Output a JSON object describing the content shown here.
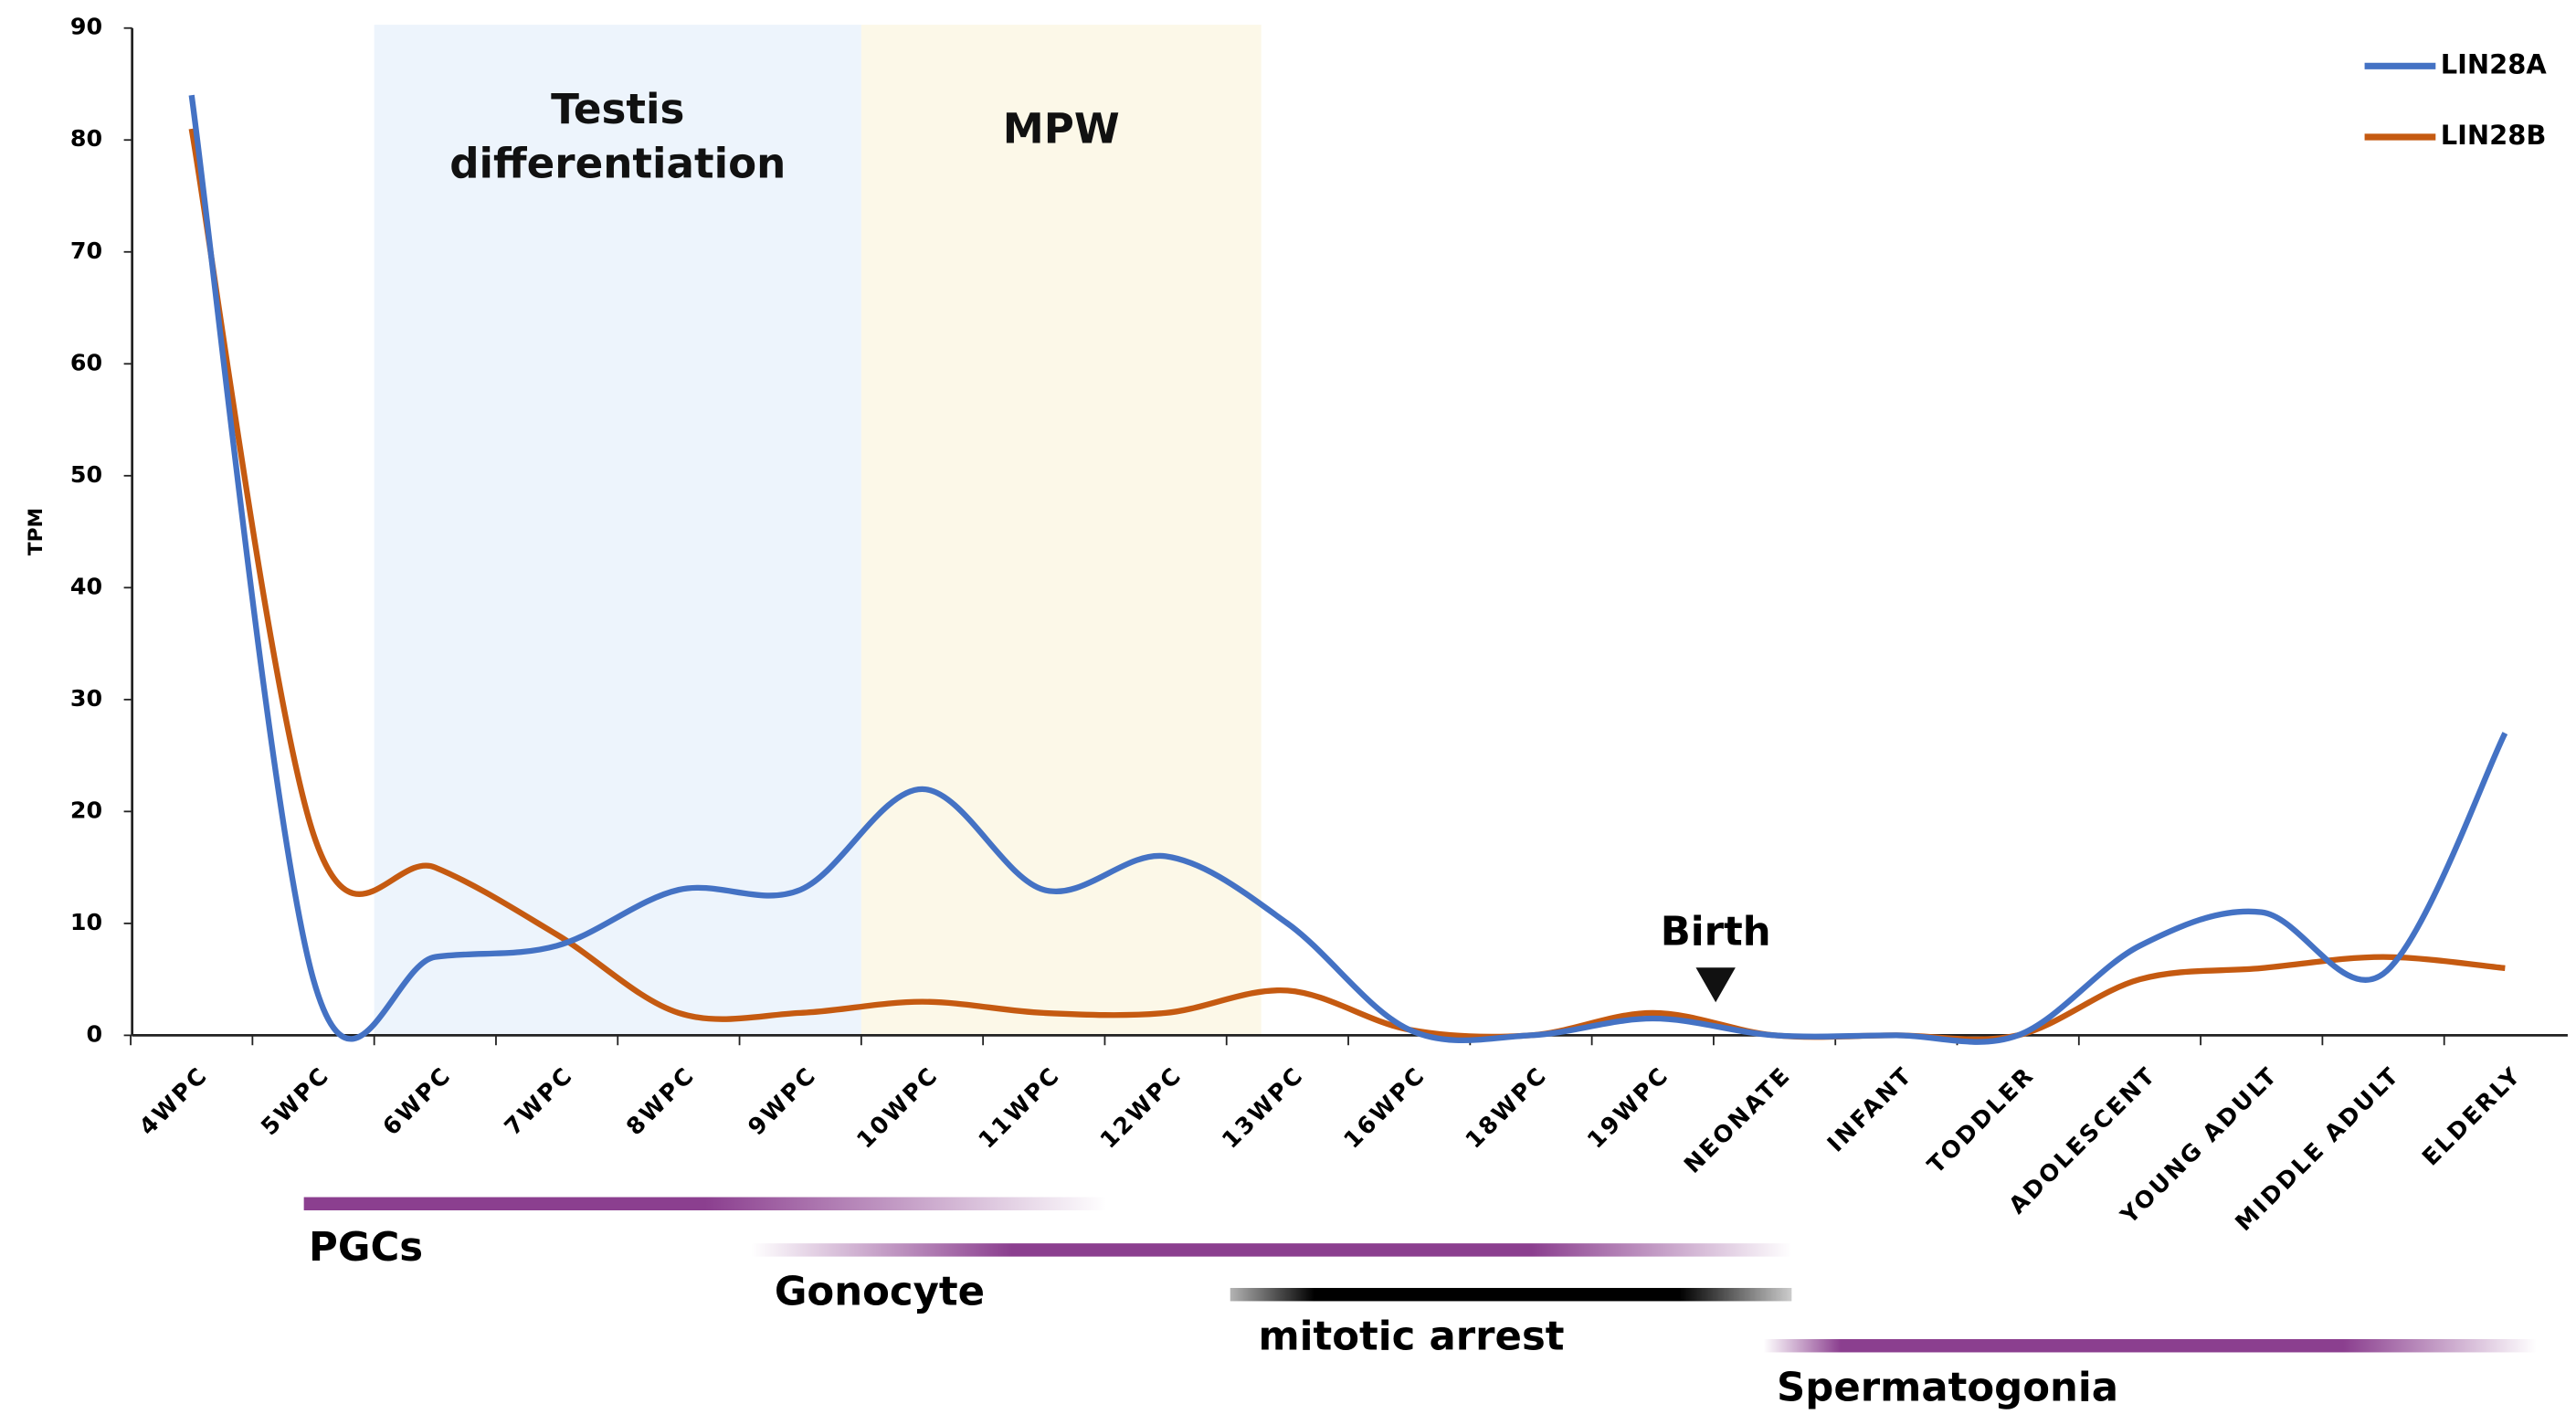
{
  "chart_data": {
    "type": "line",
    "y_label": "TPM",
    "categories": [
      "4WPC",
      "5WPC",
      "6WPC",
      "7WPC",
      "8WPC",
      "9WPC",
      "10WPC",
      "11WPC",
      "12WPC",
      "13WPC",
      "16WPC",
      "18WPC",
      "19WPC",
      "NEONATE",
      "INFANT",
      "TODDLER",
      "ADOLESCENT",
      "YOUNG ADULT",
      "MIDDLE ADULT",
      "ELDERLY"
    ],
    "series": [
      {
        "name": "LIN28A",
        "color": "#4472c4",
        "values": [
          84,
          5,
          7,
          8,
          13,
          13,
          22,
          13,
          16,
          10,
          0.5,
          0,
          1.5,
          0,
          0,
          0,
          8,
          11,
          5.5,
          27
        ]
      },
      {
        "name": "LIN28B",
        "color": "#c55a11",
        "values": [
          81,
          18,
          15,
          9,
          2,
          2,
          3,
          2,
          2,
          4,
          0.5,
          0,
          2,
          0,
          0,
          0,
          5,
          6,
          7,
          6
        ]
      }
    ],
    "ylim": [
      0,
      90
    ],
    "yticks": [
      0,
      10,
      20,
      30,
      40,
      50,
      60,
      70,
      80,
      90
    ],
    "regions": [
      {
        "lines": [
          "Testis",
          "differentiation"
        ],
        "from": "6WPC",
        "to": "10WPC",
        "color": "#edf4fc"
      },
      {
        "lines": [
          "MPW"
        ],
        "from": "10WPC",
        "to": "13WPC",
        "color": "#fcf8e8"
      }
    ],
    "event": {
      "label": "Birth",
      "at": "NEONATE"
    },
    "stages": [
      "PGCs",
      "Gonocyte",
      "mitotic arrest",
      "Spermatogonia"
    ],
    "legend": "top-right"
  }
}
